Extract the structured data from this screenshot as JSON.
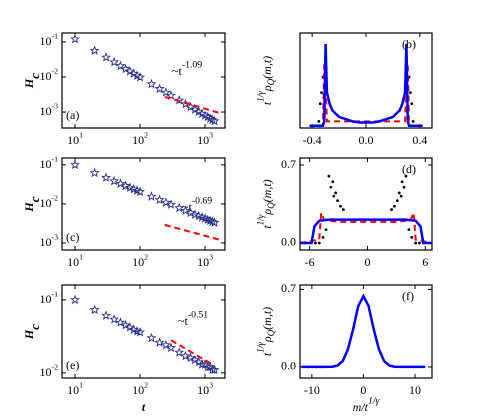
{
  "chart_data": [
    {
      "type": "scatter",
      "panel_label": "(a)",
      "xscale": "log",
      "yscale": "log",
      "xlim": [
        6.3,
        2030
      ],
      "ylim": [
        0.00035,
        0.18
      ],
      "xticks": [
        {
          "value": 10,
          "base": "10",
          "exponent": "1"
        },
        {
          "value": 100,
          "base": "10",
          "exponent": "2"
        },
        {
          "value": 1000,
          "base": "10",
          "exponent": "3"
        }
      ],
      "yticks": [
        {
          "value": 0.001,
          "base": "10",
          "exponent": "-3"
        },
        {
          "value": 0.01,
          "base": "10",
          "exponent": "-2"
        },
        {
          "value": 0.1,
          "base": "10",
          "exponent": "-1"
        }
      ],
      "ylabel": [
        {
          "text": "H"
        },
        {
          "text": "c",
          "shift": "sub"
        }
      ],
      "annotation": [
        {
          "text": "~t"
        },
        {
          "text": "-1.09",
          "shift": "super"
        }
      ],
      "series": [
        {
          "style": "star",
          "color": "#2a2f8c",
          "x": [
            10,
            20,
            30,
            40,
            50,
            60,
            70,
            80,
            90,
            100,
            150,
            200,
            250,
            300,
            400,
            500,
            600,
            700,
            800,
            900,
            1000,
            1100,
            1200,
            1300,
            1400
          ],
          "values": [
            0.12,
            0.0564,
            0.0362,
            0.0265,
            0.0208,
            0.017,
            0.0144,
            0.0124,
            0.0109,
            0.00976,
            0.00627,
            0.00458,
            0.0036,
            0.00295,
            0.00215,
            0.00169,
            0.00138,
            0.00117,
            0.00101,
            0.00089,
            0.00079,
            0.00072,
            0.00065,
            0.0006,
            0.00055
          ]
        },
        {
          "style": "dashed",
          "color": "#ff0000",
          "x": [
            240,
            1700
          ],
          "values": [
            0.0027,
            0.00093
          ]
        }
      ]
    },
    {
      "type": "line",
      "panel_label": "(b)",
      "xscale": "linear",
      "yscale": "linear",
      "xlim": [
        -0.49,
        0.49
      ],
      "ylim": [
        -1,
        42
      ],
      "xticks": [
        -0.4,
        {
          "value": 0,
          "label": "0.0"
        },
        0.4
      ],
      "yticks": [],
      "ylabel": [
        {
          "text": "t"
        },
        {
          "text": "1/γ",
          "shift": "super"
        },
        {
          "text": "ρ"
        },
        {
          "text": "Q",
          "shift": "sub"
        },
        {
          "text": "(m,t)"
        }
      ],
      "series": [
        {
          "style": "dot",
          "color": "#000000",
          "x": [
            -0.35,
            -0.34,
            -0.33,
            -0.32,
            -0.31,
            -0.3,
            0.3,
            0.31,
            0.32,
            0.33,
            0.34,
            0.35
          ],
          "values": [
            2,
            10,
            15,
            22,
            8,
            30,
            30,
            8,
            22,
            15,
            10,
            2
          ]
        },
        {
          "style": "dashed",
          "color": "#ff0000",
          "x": [
            -0.42,
            -0.32,
            -0.31,
            -0.3,
            -0.29,
            0.29,
            0.3,
            0.31,
            0.32,
            0.42
          ],
          "values": [
            0,
            0,
            28,
            20,
            2,
            2,
            20,
            28,
            0,
            0
          ]
        },
        {
          "style": "solid",
          "color": "#0000ff",
          "x": [
            -0.42,
            -0.34,
            -0.32,
            -0.31,
            -0.3,
            -0.29,
            -0.27,
            -0.25,
            -0.2,
            -0.15,
            -0.1,
            -0.05,
            0,
            0.05,
            0.1,
            0.15,
            0.2,
            0.25,
            0.27,
            0.29,
            0.3,
            0.31,
            0.32,
            0.34,
            0.42
          ],
          "values": [
            0,
            0,
            0,
            2,
            37,
            15,
            10,
            7,
            4,
            3,
            2,
            1.5,
            1.5,
            1.5,
            2,
            3,
            4,
            7,
            10,
            15,
            37,
            2,
            0,
            0,
            0
          ]
        }
      ]
    },
    {
      "type": "scatter",
      "panel_label": "(c)",
      "xscale": "log",
      "yscale": "log",
      "xlim": [
        6.3,
        2030
      ],
      "ylim": [
        0.00066,
        0.15
      ],
      "xticks": [
        {
          "value": 10,
          "base": "10",
          "exponent": "1"
        },
        {
          "value": 100,
          "base": "10",
          "exponent": "2"
        },
        {
          "value": 1000,
          "base": "10",
          "exponent": "3"
        }
      ],
      "yticks": [
        {
          "value": 0.001,
          "base": "10",
          "exponent": "-3"
        },
        {
          "value": 0.01,
          "base": "10",
          "exponent": "-2"
        },
        {
          "value": 0.1,
          "base": "10",
          "exponent": "-1"
        }
      ],
      "ylabel": [
        {
          "text": "H"
        },
        {
          "text": "c",
          "shift": "sub"
        }
      ],
      "annotation": [
        {
          "text": "~t"
        },
        {
          "text": "-0.69",
          "shift": "super"
        }
      ],
      "series": [
        {
          "style": "star",
          "color": "#2a2f8c",
          "x": [
            10,
            20,
            30,
            40,
            50,
            60,
            70,
            80,
            90,
            100,
            150,
            200,
            250,
            300,
            400,
            500,
            600,
            700,
            800,
            900,
            1000,
            1100,
            1200,
            1300,
            1400
          ],
          "values": [
            0.1,
            0.062,
            0.0469,
            0.0384,
            0.033,
            0.0291,
            0.0261,
            0.0238,
            0.022,
            0.0204,
            0.0154,
            0.0127,
            0.0108,
            0.0096,
            0.0079,
            0.0067,
            0.0059,
            0.0053,
            0.0049,
            0.0045,
            0.0042,
            0.0039,
            0.0037,
            0.0035,
            0.0033
          ]
        },
        {
          "style": "dashed",
          "color": "#ff0000",
          "x": [
            240,
            1700
          ],
          "values": [
            0.0029,
            0.0012
          ]
        }
      ]
    },
    {
      "type": "line",
      "panel_label": "(d)",
      "xscale": "linear",
      "yscale": "linear",
      "xlim": [
        -7.0,
        6.7
      ],
      "ylim": [
        -0.063,
        0.763
      ],
      "xticks": [
        -6,
        0,
        6
      ],
      "yticks": [
        {
          "value": 0,
          "label": "0.0"
        },
        0.7
      ],
      "ylabel": [
        {
          "text": "t"
        },
        {
          "text": "1/γ",
          "shift": "super"
        },
        {
          "text": "ρ"
        },
        {
          "text": "Q",
          "shift": "sub"
        },
        {
          "text": "(m,t)"
        }
      ],
      "series": [
        {
          "style": "dot",
          "color": "#000000",
          "x": [
            -5.4,
            -5.0,
            -4.6,
            -4.3,
            -4.0,
            -3.8,
            -3.6,
            -3.5,
            -3.3,
            -3.1,
            -2.8,
            -2.5,
            2.5,
            2.8,
            3.1,
            3.3,
            3.5,
            3.6,
            3.8,
            4.0,
            4.3,
            4.6,
            5.0,
            5.4
          ],
          "values": [
            0,
            0,
            0.05,
            0.12,
            0.6,
            0.5,
            0.55,
            0.42,
            0.45,
            0.38,
            0.33,
            0.3,
            0.3,
            0.33,
            0.38,
            0.45,
            0.42,
            0.55,
            0.5,
            0.6,
            0.12,
            0.05,
            0,
            0
          ]
        },
        {
          "style": "dashed",
          "color": "#ff0000",
          "x": [
            -7,
            -5,
            -4.8,
            -4.5,
            -4,
            -3,
            0,
            3,
            4,
            4.5,
            4.8,
            5,
            6.7
          ],
          "values": [
            0,
            0.03,
            0.27,
            0.21,
            0.2,
            0.19,
            0.19,
            0.19,
            0.2,
            0.21,
            0.27,
            0.03,
            0
          ]
        },
        {
          "style": "solid",
          "color": "#0000ff",
          "x": [
            -7,
            -5.8,
            -5.5,
            -5,
            -4,
            -2,
            0,
            2,
            4,
            5,
            5.5,
            5.8,
            6.7
          ],
          "values": [
            0,
            0,
            0.15,
            0.2,
            0.21,
            0.21,
            0.21,
            0.21,
            0.21,
            0.2,
            0.15,
            0,
            0
          ]
        }
      ]
    },
    {
      "type": "scatter",
      "panel_label": "(e)",
      "xscale": "log",
      "yscale": "log",
      "xlim": [
        6.3,
        2030
      ],
      "ylim": [
        0.0085,
        0.16
      ],
      "xticks": [
        {
          "value": 10,
          "base": "10",
          "exponent": "1"
        },
        {
          "value": 100,
          "base": "10",
          "exponent": "2"
        },
        {
          "value": 1000,
          "base": "10",
          "exponent": "3"
        }
      ],
      "yticks": [
        {
          "value": 0.01,
          "base": "10",
          "exponent": "-2"
        },
        {
          "value": 0.1,
          "base": "10",
          "exponent": "-1"
        }
      ],
      "ylabel": [
        {
          "text": "H"
        },
        {
          "text": "c",
          "shift": "sub"
        }
      ],
      "xlabel": [
        {
          "text": "t"
        }
      ],
      "annotation": [
        {
          "text": "~t"
        },
        {
          "text": "-0.51",
          "shift": "super"
        }
      ],
      "series": [
        {
          "style": "star",
          "color": "#2a2f8c",
          "x": [
            10,
            20,
            30,
            40,
            50,
            60,
            70,
            80,
            90,
            100,
            150,
            200,
            250,
            300,
            400,
            500,
            600,
            700,
            800,
            900,
            1000,
            1100,
            1200,
            1300,
            1400
          ],
          "values": [
            0.1,
            0.073,
            0.061,
            0.054,
            0.049,
            0.045,
            0.042,
            0.039,
            0.037,
            0.036,
            0.03,
            0.026,
            0.024,
            0.022,
            0.019,
            0.017,
            0.016,
            0.015,
            0.014,
            0.013,
            0.013,
            0.012,
            0.012,
            0.011,
            0.011
          ]
        },
        {
          "style": "dashed",
          "color": "#ff0000",
          "x": [
            300,
            1300
          ],
          "values": [
            0.028,
            0.013
          ]
        }
      ]
    },
    {
      "type": "line",
      "panel_label": "(f)",
      "xscale": "linear",
      "yscale": "linear",
      "xlim": [
        -12.3,
        13.3
      ],
      "ylim": [
        -0.1,
        0.74
      ],
      "xticks": [
        -10,
        0,
        10
      ],
      "yticks": [
        {
          "value": 0,
          "label": "0.0"
        },
        0.7
      ],
      "ylabel": [
        {
          "text": "t"
        },
        {
          "text": "1/γ",
          "shift": "super"
        },
        {
          "text": "ρ"
        },
        {
          "text": "Q",
          "shift": "sub"
        },
        {
          "text": "(m,t)"
        }
      ],
      "xlabel": [
        {
          "text": "m/t"
        },
        {
          "text": "1/γ",
          "shift": "super"
        }
      ],
      "series": [
        {
          "style": "solid",
          "color": "#0000ff",
          "x": [
            -12,
            -8,
            -6,
            -5,
            -4,
            -3,
            -2,
            -1,
            0,
            1,
            2,
            3,
            4,
            5,
            6,
            8,
            12
          ],
          "values": [
            0,
            0,
            0.002,
            0.013,
            0.054,
            0.16,
            0.34,
            0.55,
            0.64,
            0.55,
            0.34,
            0.16,
            0.054,
            0.013,
            0.002,
            0,
            0
          ]
        }
      ]
    }
  ]
}
